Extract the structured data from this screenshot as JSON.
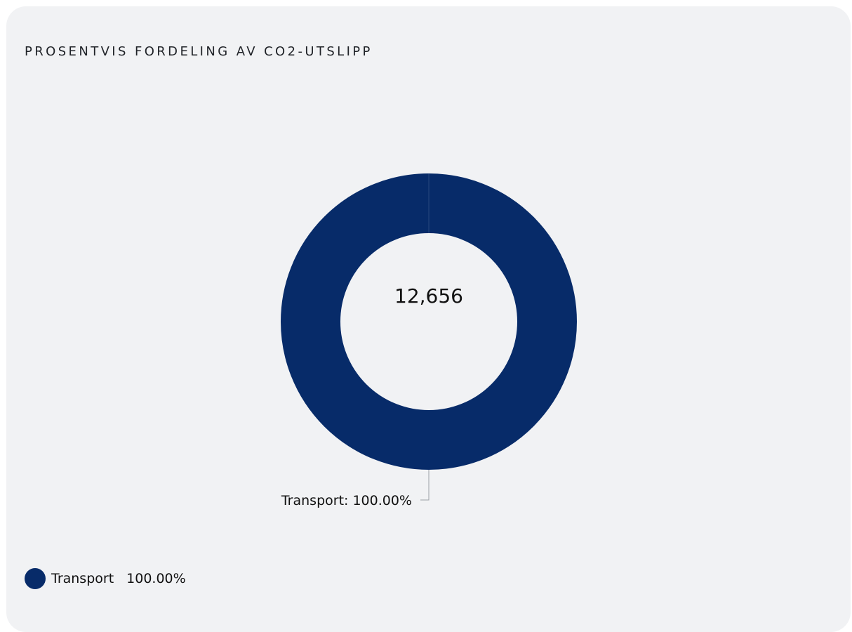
{
  "card": {
    "title": "PROSENTVIS FORDELING AV CO2-UTSLIPP"
  },
  "chart_data": {
    "type": "pie",
    "variant": "donut",
    "title": "PROSENTVIS FORDELING AV CO2-UTSLIPP",
    "center_label": "12,656",
    "categories": [
      "Transport"
    ],
    "values": [
      100.0
    ],
    "value_labels": [
      "100.00%"
    ],
    "slice_labels": [
      "Transport: 100.00%"
    ],
    "colors": [
      "#072b69"
    ],
    "legend_placement": "bottom-left"
  },
  "legend": {
    "items": [
      {
        "label": "Transport",
        "value": "100.00%",
        "color": "#072b69"
      }
    ]
  }
}
